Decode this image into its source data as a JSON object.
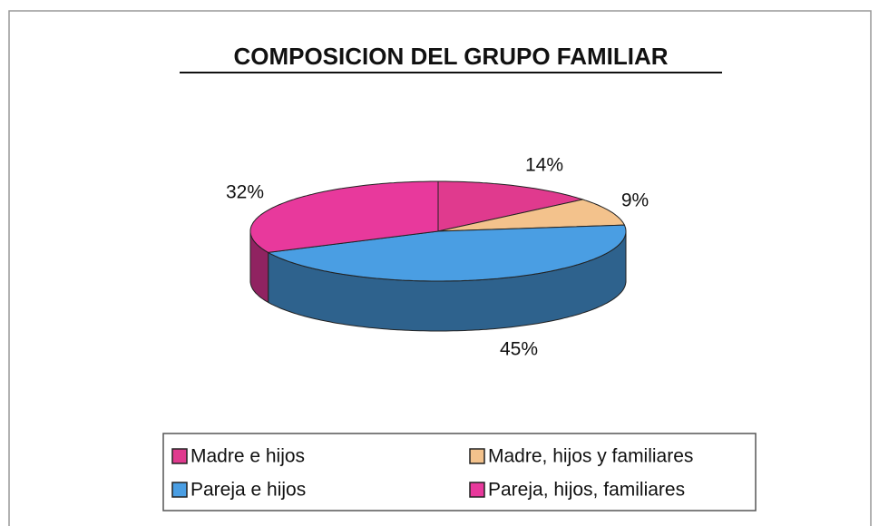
{
  "chart_data": {
    "type": "pie3d",
    "title": "COMPOSICION DEL GRUPO  FAMILIAR",
    "categories": [
      "Madre e hijos",
      "Madre, hijos y familiares",
      "Pareja e hijos",
      "Pareja, hijos, familiares"
    ],
    "values": [
      14,
      9,
      45,
      32
    ],
    "value_labels": [
      "14%",
      "9%",
      "45%",
      "32%"
    ],
    "colors": [
      "#e03a8e",
      "#f3c28c",
      "#4a9ee3",
      "#e8399c"
    ],
    "legend": "bottom"
  }
}
